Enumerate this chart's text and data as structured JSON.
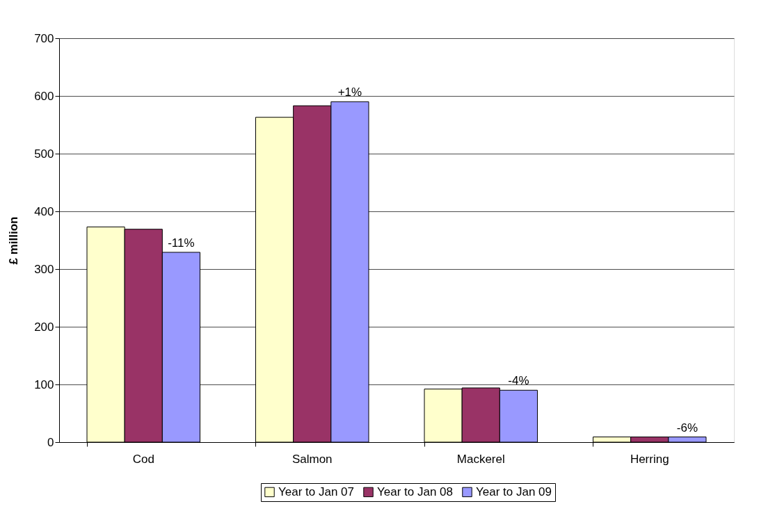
{
  "chart_data": {
    "type": "bar",
    "ylabel": "£ million",
    "categories": [
      "Cod",
      "Salmon",
      "Mackerel",
      "Herring"
    ],
    "series": [
      {
        "name": "Year to Jan 07",
        "color": "#ffffcc",
        "values": [
          373,
          563,
          92,
          9
        ]
      },
      {
        "name": "Year to Jan 08",
        "color": "#993366",
        "values": [
          369,
          583,
          94,
          9
        ]
      },
      {
        "name": "Year to Jan 09",
        "color": "#9999ff",
        "values": [
          329,
          590,
          90,
          9
        ]
      }
    ],
    "ylim": [
      0,
      700
    ],
    "yticks": [
      0,
      100,
      200,
      300,
      400,
      500,
      600,
      700
    ],
    "grid": "y",
    "legend": "bottom",
    "annotations": [
      "-11%",
      "+1%",
      "-4%",
      "-6%"
    ]
  }
}
